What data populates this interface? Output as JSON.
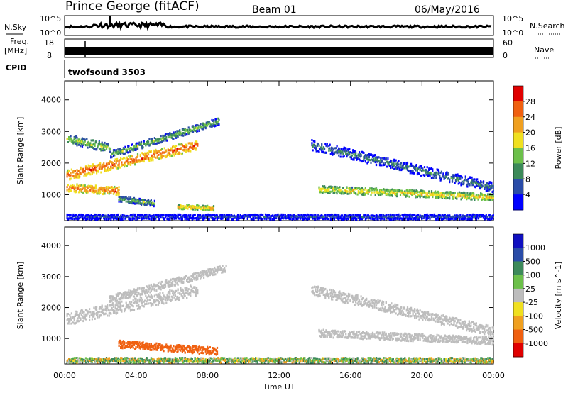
{
  "header": {
    "station": "Prince George (fitACF)",
    "beam": "Beam 01",
    "date": "06/May/2016"
  },
  "left_labels": {
    "nsky": "N.Sky",
    "nsky_tick_top": "10^5",
    "nsky_tick_bottom": "10^0",
    "freq": "Freq.",
    "freq_unit": "[MHz]",
    "freq_tick_top": "18",
    "freq_tick_bottom": "8",
    "cpid": "CPID",
    "cpid_name": "twofsound 3503"
  },
  "right_labels": {
    "nsearch": "N.Search",
    "nsearch_tick_top": "10^5",
    "nsearch_tick_bottom": "10^0",
    "nave": "Nave",
    "nave_tick_top": "60",
    "nave_tick_bottom": "0"
  },
  "colors": {
    "trace": "#000000",
    "power_scale": [
      "#0000ff",
      "#2a4ca8",
      "#3c8a5a",
      "#6cc04a",
      "#f0e020",
      "#f0a020",
      "#f06010",
      "#e00000"
    ],
    "velocity_scale": [
      "#e00000",
      "#f06010",
      "#f0a020",
      "#f0e020",
      "#bdbdbd",
      "#6cc04a",
      "#3c8a5a",
      "#2a4ca8",
      "#1010c0"
    ]
  },
  "chart_data": [
    {
      "type": "heatmap",
      "ylabel": "Slant Range [km]",
      "ylim": [
        180,
        4600
      ],
      "yticks": [
        1000,
        2000,
        3000,
        4000
      ],
      "xlim": [
        0,
        24
      ],
      "xticks": [
        "00:00",
        "04:00",
        "08:00",
        "12:00",
        "16:00",
        "20:00",
        "00:00"
      ],
      "colorbar": {
        "label": "Power [dB]",
        "range": [
          0,
          32
        ],
        "ticks": [
          "4",
          "8",
          "12",
          "16",
          "20",
          "24",
          "28"
        ]
      },
      "bands": [
        {
          "t0": 0.1,
          "t1": 7.4,
          "r0": 1650,
          "r1": 2600,
          "width": 320,
          "value": 27
        },
        {
          "t0": 0.1,
          "t1": 3.0,
          "r0": 1250,
          "r1": 1150,
          "width": 260,
          "value": 26
        },
        {
          "t0": 0.1,
          "t1": 2.5,
          "r0": 2800,
          "r1": 2500,
          "width": 280,
          "value": 16
        },
        {
          "t0": 2.5,
          "t1": 8.6,
          "r0": 2300,
          "r1": 3350,
          "width": 220,
          "value": 14
        },
        {
          "t0": 3.0,
          "t1": 5.0,
          "r0": 900,
          "r1": 750,
          "width": 180,
          "value": 14
        },
        {
          "t0": 6.3,
          "t1": 8.3,
          "r0": 650,
          "r1": 600,
          "width": 150,
          "value": 22
        },
        {
          "t0": 13.8,
          "t1": 24.0,
          "r0": 2600,
          "r1": 1250,
          "width": 320,
          "value": 10
        },
        {
          "t0": 14.2,
          "t1": 24.0,
          "r0": 1200,
          "r1": 950,
          "width": 220,
          "value": 20
        },
        {
          "t0": 0.1,
          "t1": 24.0,
          "r0": 330,
          "r1": 330,
          "width": 160,
          "value": 7
        }
      ]
    },
    {
      "type": "heatmap",
      "ylabel": "Slant Range [km]",
      "ylim": [
        180,
        4600
      ],
      "yticks": [
        1000,
        2000,
        3000,
        4000
      ],
      "xlim": [
        0,
        24
      ],
      "xlabel": "Time UT",
      "xticks": [
        "00:00",
        "04:00",
        "08:00",
        "12:00",
        "16:00",
        "20:00",
        "00:00"
      ],
      "colorbar": {
        "label": "Velocity [m s^-1]",
        "ticks": [
          "1000",
          "500",
          "100",
          "25",
          "-25",
          "-100",
          "-500",
          "-1000"
        ]
      },
      "bands": [
        {
          "t0": 0.1,
          "t1": 7.4,
          "r0": 1650,
          "r1": 2600,
          "width": 380,
          "value": 0
        },
        {
          "t0": 2.5,
          "t1": 9.0,
          "r0": 2300,
          "r1": 3300,
          "width": 240,
          "value": 0
        },
        {
          "t0": 3.0,
          "t1": 8.5,
          "r0": 850,
          "r1": 620,
          "width": 240,
          "value": -300
        },
        {
          "t0": 13.8,
          "t1": 24.0,
          "r0": 2600,
          "r1": 1250,
          "width": 320,
          "value": 0
        },
        {
          "t0": 14.2,
          "t1": 24.0,
          "r0": 1200,
          "r1": 950,
          "width": 240,
          "value": 0
        },
        {
          "t0": 0.1,
          "t1": 24.0,
          "r0": 330,
          "r1": 330,
          "width": 160,
          "value": 50
        }
      ]
    }
  ]
}
